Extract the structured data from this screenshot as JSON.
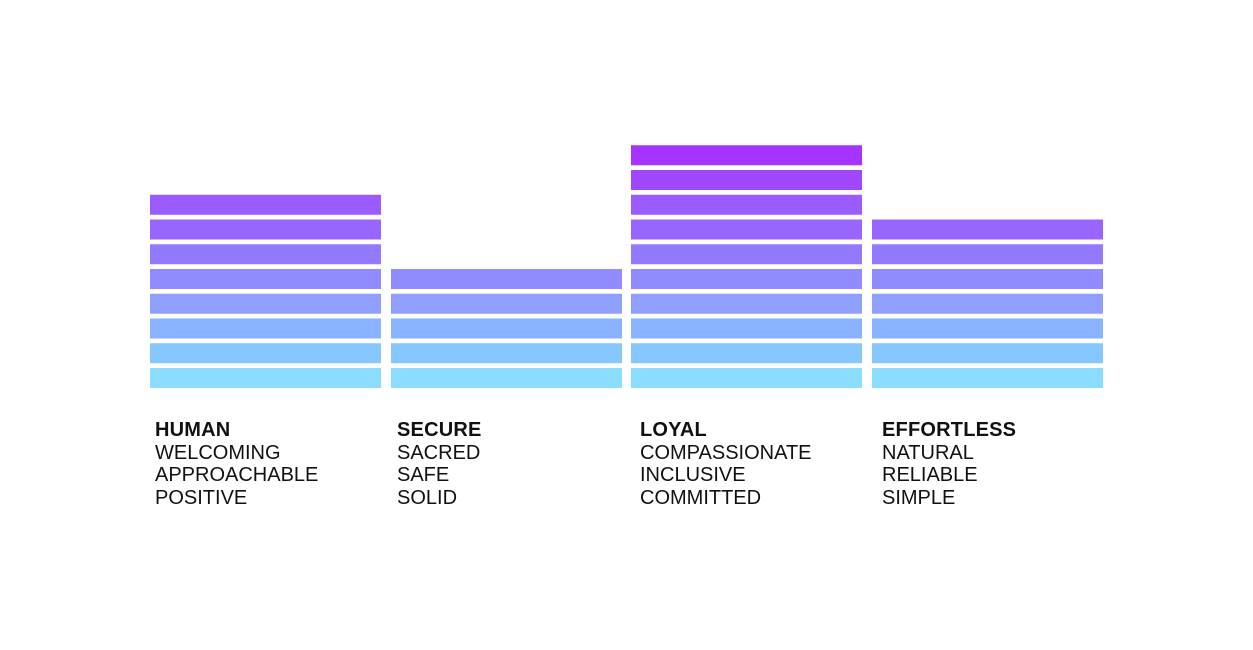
{
  "chart_data": {
    "type": "bar",
    "style": "stacked-segment-columns",
    "categories": [
      "HUMAN",
      "SECURE",
      "LOYAL",
      "EFFORTLESS"
    ],
    "values": [
      8,
      5,
      10,
      7
    ],
    "descriptors": [
      [
        "WELCOMING",
        "APPROACHABLE",
        "POSITIVE"
      ],
      [
        "SACRED",
        "SAFE",
        "SOLID"
      ],
      [
        "COMPASSIONATE",
        "INCLUSIVE",
        "COMMITTED"
      ],
      [
        "NATURAL",
        "RELIABLE",
        "SIMPLE"
      ]
    ],
    "segment_colors": [
      "#8ADDFF",
      "#86C7FF",
      "#8AB3FF",
      "#8E9FFF",
      "#908CFF",
      "#9379FF",
      "#9866FF",
      "#9A5CFF",
      "#A047FF",
      "#A633FF"
    ],
    "title": "",
    "xlabel": "",
    "ylabel": "",
    "grid": false,
    "legend": "none"
  }
}
